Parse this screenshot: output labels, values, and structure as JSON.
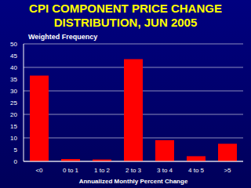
{
  "chart_data": {
    "type": "bar",
    "title": "CPI COMPONENT PRICE CHANGE DISTRIBUTION, JUN 2005",
    "x_label": "Annualized Monthly Percent Change",
    "y_label": "Weighted Frequency",
    "categories": [
      "<0",
      "0 to 1",
      "1 to 2",
      "2 to 3",
      "3 to 4",
      "4 to 5",
      ">5"
    ],
    "values": [
      36.5,
      1,
      0.8,
      43.5,
      9,
      2.2,
      7.5
    ],
    "color": "#ff0000",
    "ylim": [
      0,
      50
    ],
    "yticks": [
      0,
      5,
      10,
      15,
      20,
      25,
      30,
      35,
      40,
      45,
      50
    ],
    "grid": true
  }
}
